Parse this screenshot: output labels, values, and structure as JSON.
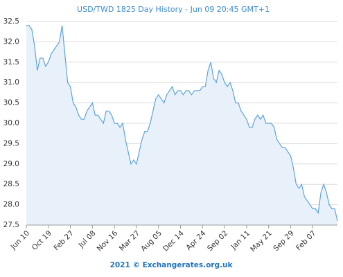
{
  "chart_data": {
    "type": "area",
    "title": "USD/TWD 1825 Day History - Jun 09 20:45 GMT+1",
    "source": "2021 © Exchangerates.org.uk",
    "categories": [
      "Jun 10",
      null,
      null,
      null,
      null,
      null,
      null,
      null,
      "Oct 19",
      null,
      null,
      null,
      null,
      null,
      null,
      null,
      "Feb 27",
      null,
      null,
      null,
      null,
      null,
      null,
      null,
      "Jul 08",
      null,
      null,
      null,
      null,
      null,
      null,
      null,
      "Nov 16",
      null,
      null,
      null,
      null,
      null,
      null,
      null,
      "Mar 27",
      null,
      null,
      null,
      null,
      null,
      null,
      null,
      "Aug 05",
      null,
      null,
      null,
      null,
      null,
      null,
      null,
      "Dec 14",
      null,
      null,
      null,
      null,
      null,
      null,
      null,
      "Apr 24",
      null,
      null,
      null,
      null,
      null,
      null,
      null,
      "Sep 02",
      null,
      null,
      null,
      null,
      null,
      null,
      null,
      "Jan 11",
      null,
      null,
      null,
      null,
      null,
      null,
      null,
      "May 21",
      null,
      null,
      null,
      null,
      null,
      null,
      null,
      "Sep 29",
      null,
      null,
      null,
      null,
      null,
      null,
      null,
      "Feb 07",
      null,
      null,
      null,
      null,
      null,
      null,
      null,
      null,
      null
    ],
    "values": [
      32.4,
      32.4,
      32.3,
      31.9,
      31.3,
      31.6,
      31.6,
      31.4,
      31.5,
      31.7,
      31.8,
      31.9,
      32.0,
      32.4,
      31.7,
      31.0,
      30.9,
      30.5,
      30.4,
      30.2,
      30.1,
      30.1,
      30.3,
      30.4,
      30.5,
      30.2,
      30.2,
      30.1,
      30.0,
      30.3,
      30.3,
      30.2,
      30.0,
      30.0,
      29.9,
      30.0,
      29.6,
      29.3,
      29.0,
      29.1,
      29.0,
      29.3,
      29.6,
      29.8,
      29.8,
      30.0,
      30.3,
      30.6,
      30.7,
      30.6,
      30.5,
      30.7,
      30.8,
      30.9,
      30.7,
      30.8,
      30.8,
      30.7,
      30.8,
      30.8,
      30.7,
      30.8,
      30.8,
      30.8,
      30.9,
      30.9,
      31.3,
      31.5,
      31.1,
      31.0,
      31.3,
      31.2,
      31.0,
      30.9,
      31.0,
      30.8,
      30.5,
      30.5,
      30.3,
      30.2,
      30.1,
      29.9,
      29.9,
      30.1,
      30.2,
      30.1,
      30.2,
      30.0,
      30.0,
      30.0,
      29.9,
      29.6,
      29.5,
      29.4,
      29.4,
      29.3,
      29.2,
      28.9,
      28.5,
      28.4,
      28.5,
      28.2,
      28.1,
      28.0,
      27.9,
      27.9,
      27.8,
      28.3,
      28.5,
      28.3,
      28.0,
      27.9,
      27.9,
      27.6
    ],
    "color": "#5ea3d9",
    "fill": "#e8f1fa",
    "ylim": [
      27.5,
      32.5
    ],
    "yticks": [
      27.5,
      {
        "value": 28,
        "label": "28.0"
      },
      28.5,
      {
        "value": 29,
        "label": "29.0"
      },
      29.5,
      {
        "value": 30,
        "label": "30.0"
      },
      30.5,
      {
        "value": 31,
        "label": "31.0"
      },
      31.5,
      {
        "value": 32,
        "label": "32.0"
      },
      32.5
    ],
    "grid": true
  }
}
